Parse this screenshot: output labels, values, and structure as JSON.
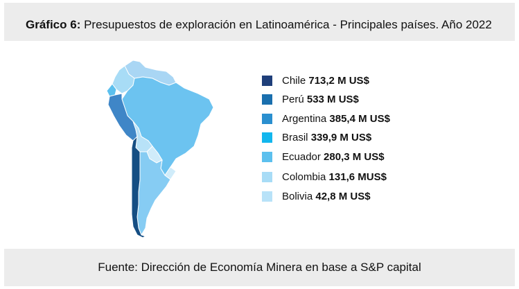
{
  "header": {
    "title_prefix": "Gráfico 6:",
    "title": "Presupuestos de exploración en Latinoamérica - Principales países. Año 2022"
  },
  "legend": {
    "items": [
      {
        "country": "Chile",
        "value": "713,2 M US$",
        "color": "#1f3f7a"
      },
      {
        "country": "Perú",
        "value": "533 M US$",
        "color": "#1a6fae"
      },
      {
        "country": "Argentina",
        "value": "385,4 M US$",
        "color": "#2a8fcf"
      },
      {
        "country": "Brasil",
        "value": "339,9 M US$",
        "color": "#12b6ee"
      },
      {
        "country": "Ecuador",
        "value": "280,3 M US$",
        "color": "#5cc0ee"
      },
      {
        "country": "Colombia",
        "value": "131,6 MUS$",
        "color": "#a8dcf6"
      },
      {
        "country": "Bolivia",
        "value": "42,8 M US$",
        "color": "#b8e2f8"
      }
    ]
  },
  "map": {
    "region": "South America",
    "other_countries_color": "#a5d2f3",
    "brazil_fill_color": "#6cc3f0",
    "argentina_fill_color": "#86ccf3",
    "chile_fill_color": "#154e83",
    "peru_fill_color": "#3f86c7"
  },
  "footer": {
    "source": "Fuente: Dirección de Economía Minera en base a S&P capital"
  }
}
